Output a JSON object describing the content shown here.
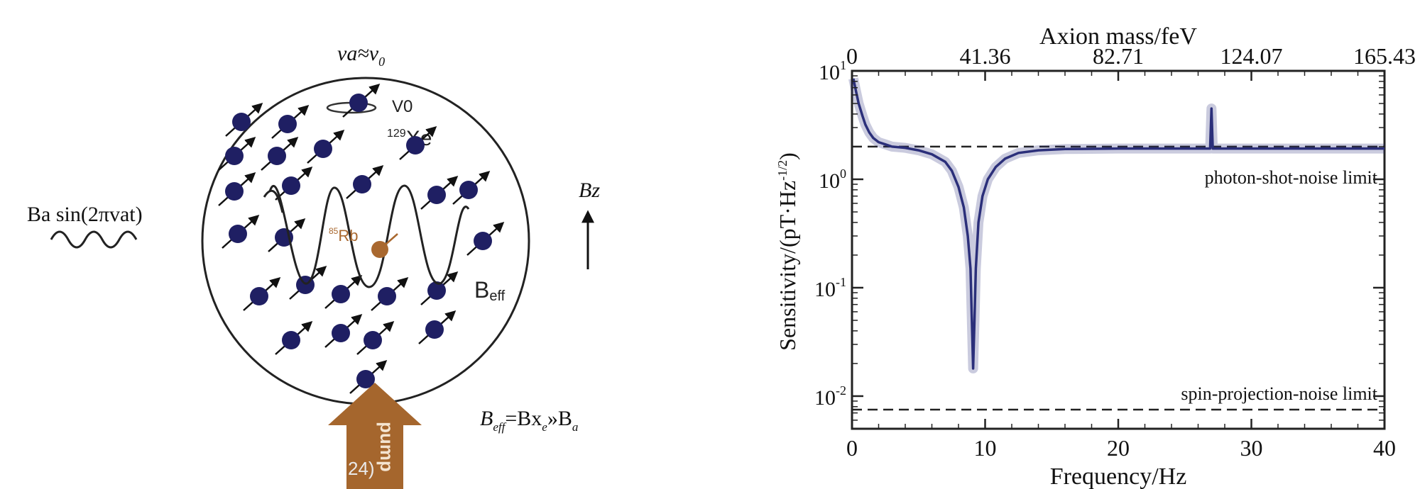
{
  "diagram": {
    "top_label": {
      "main": "va≈v",
      "sub": "0"
    },
    "v0_label": "V0",
    "xe_label": {
      "sup": "129",
      "main": "Xe"
    },
    "rb_label": {
      "sup": "85",
      "main": "Rb"
    },
    "beff_label": {
      "main": "B",
      "sub": "eff"
    },
    "axion_field_label": "Ba sin(2πvat)",
    "bz_label": "Bz",
    "pump_label": "pump",
    "relation": {
      "b1": "B",
      "s1": "eff",
      "mid": "=Bx",
      "s2": "e",
      "mid2": "»B",
      "s3": "a"
    },
    "watermark": "24)",
    "colors": {
      "spin": "#1f1f63",
      "rb": "#a9682f",
      "pump": "#a5662d"
    }
  },
  "chart_data": {
    "type": "line",
    "xlabel": "Frequency/Hz",
    "ylabel": "Sensitivity/(pT·Hz",
    "ylabel_sup": "-1/2",
    "top_axis_label": "Axion mass/feV",
    "xlim": [
      0,
      40
    ],
    "ylim": [
      0.005,
      10
    ],
    "yscale": "log",
    "x_ticks": [
      "0",
      "10",
      "20",
      "30",
      "40"
    ],
    "x_tick_values": [
      0,
      10,
      20,
      30,
      40
    ],
    "top_ticks": [
      "0",
      "41.36",
      "82.71",
      "124.07",
      "165.43"
    ],
    "y_ticks": [
      {
        "value": 10,
        "base": "10",
        "exp": "1"
      },
      {
        "value": 1,
        "base": "10",
        "exp": "0"
      },
      {
        "value": 0.1,
        "base": "10",
        "exp": "-1"
      },
      {
        "value": 0.01,
        "base": "10",
        "exp": "-2"
      }
    ],
    "series": [
      {
        "color": "#2b2f7a",
        "x": [
          0.1,
          0.3,
          0.5,
          0.8,
          1.0,
          1.3,
          1.6,
          2.0,
          2.5,
          3.0,
          4.0,
          5.0,
          6.0,
          7.0,
          7.5,
          8.0,
          8.4,
          8.7,
          8.9,
          9.0,
          9.1,
          9.2,
          9.3,
          9.5,
          9.8,
          10.2,
          10.8,
          11.5,
          12.5,
          14.0,
          16.0,
          20.0,
          25.0,
          26.9,
          27.0,
          27.1,
          30.0,
          35.0,
          40.0
        ],
        "y": [
          8.5,
          6.5,
          5.0,
          3.8,
          3.2,
          2.7,
          2.4,
          2.2,
          2.1,
          2.0,
          1.95,
          1.85,
          1.7,
          1.45,
          1.2,
          0.85,
          0.55,
          0.3,
          0.15,
          0.05,
          0.018,
          0.05,
          0.15,
          0.4,
          0.7,
          1.0,
          1.3,
          1.55,
          1.75,
          1.85,
          1.9,
          1.92,
          1.92,
          1.92,
          4.5,
          1.92,
          1.92,
          1.92,
          1.92
        ]
      }
    ],
    "reference_lines": [
      {
        "name": "photon-shot-noise limit",
        "y": 2.0
      },
      {
        "name": "spin-projection-noise limit",
        "y": 0.0075
      }
    ]
  }
}
